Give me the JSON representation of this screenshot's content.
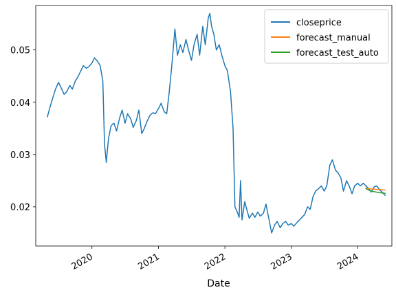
{
  "chart_data": {
    "type": "line",
    "title": "",
    "xlabel": "Date",
    "ylabel": "",
    "x_tick_labels": [
      "2020",
      "2021",
      "2022",
      "2023",
      "2024"
    ],
    "y_tick_labels": [
      "0.02",
      "0.03",
      "0.04",
      "0.05"
    ],
    "y_ticks": [
      0.02,
      0.03,
      0.04,
      0.05
    ],
    "xlim": [
      "2019-02-26",
      "2024-07-07"
    ],
    "ylim": [
      0.0125,
      0.0585
    ],
    "grid": false,
    "legend_position": "top-right",
    "series": [
      {
        "name": "closeprice",
        "color": "#1f77b4",
        "points": [
          [
            "2019-05-01",
            0.0372
          ],
          [
            "2019-05-15",
            0.039
          ],
          [
            "2019-06-01",
            0.041
          ],
          [
            "2019-06-15",
            0.0425
          ],
          [
            "2019-07-01",
            0.0438
          ],
          [
            "2019-07-15",
            0.0428
          ],
          [
            "2019-08-01",
            0.0415
          ],
          [
            "2019-08-15",
            0.042
          ],
          [
            "2019-09-01",
            0.0432
          ],
          [
            "2019-09-15",
            0.0425
          ],
          [
            "2019-10-01",
            0.044
          ],
          [
            "2019-10-15",
            0.0448
          ],
          [
            "2019-11-01",
            0.046
          ],
          [
            "2019-11-15",
            0.047
          ],
          [
            "2019-12-01",
            0.0465
          ],
          [
            "2019-12-15",
            0.0468
          ],
          [
            "2020-01-01",
            0.0475
          ],
          [
            "2020-01-15",
            0.0485
          ],
          [
            "2020-02-01",
            0.0478
          ],
          [
            "2020-02-15",
            0.047
          ],
          [
            "2020-03-01",
            0.044
          ],
          [
            "2020-03-10",
            0.032
          ],
          [
            "2020-03-20",
            0.0285
          ],
          [
            "2020-04-01",
            0.033
          ],
          [
            "2020-04-15",
            0.0355
          ],
          [
            "2020-05-01",
            0.036
          ],
          [
            "2020-05-15",
            0.0345
          ],
          [
            "2020-06-01",
            0.037
          ],
          [
            "2020-06-15",
            0.0385
          ],
          [
            "2020-07-01",
            0.036
          ],
          [
            "2020-07-15",
            0.0378
          ],
          [
            "2020-08-01",
            0.0368
          ],
          [
            "2020-08-15",
            0.0352
          ],
          [
            "2020-09-01",
            0.0365
          ],
          [
            "2020-09-15",
            0.0385
          ],
          [
            "2020-10-01",
            0.034
          ],
          [
            "2020-10-15",
            0.035
          ],
          [
            "2020-11-01",
            0.0365
          ],
          [
            "2020-11-15",
            0.0375
          ],
          [
            "2020-12-01",
            0.038
          ],
          [
            "2020-12-15",
            0.0378
          ],
          [
            "2021-01-01",
            0.0388
          ],
          [
            "2021-01-15",
            0.0398
          ],
          [
            "2021-02-01",
            0.0382
          ],
          [
            "2021-02-15",
            0.0378
          ],
          [
            "2021-03-01",
            0.042
          ],
          [
            "2021-03-15",
            0.047
          ],
          [
            "2021-04-01",
            0.054
          ],
          [
            "2021-04-15",
            0.049
          ],
          [
            "2021-05-01",
            0.051
          ],
          [
            "2021-05-15",
            0.0495
          ],
          [
            "2021-06-01",
            0.052
          ],
          [
            "2021-06-15",
            0.05
          ],
          [
            "2021-07-01",
            0.048
          ],
          [
            "2021-07-15",
            0.051
          ],
          [
            "2021-08-01",
            0.053
          ],
          [
            "2021-08-15",
            0.049
          ],
          [
            "2021-09-01",
            0.0545
          ],
          [
            "2021-09-15",
            0.051
          ],
          [
            "2021-10-01",
            0.056
          ],
          [
            "2021-10-10",
            0.057
          ],
          [
            "2021-10-20",
            0.0545
          ],
          [
            "2021-11-01",
            0.053
          ],
          [
            "2021-11-15",
            0.05
          ],
          [
            "2021-12-01",
            0.051
          ],
          [
            "2021-12-15",
            0.049
          ],
          [
            "2022-01-01",
            0.047
          ],
          [
            "2022-01-15",
            0.046
          ],
          [
            "2022-02-01",
            0.042
          ],
          [
            "2022-02-15",
            0.035
          ],
          [
            "2022-02-25",
            0.02
          ],
          [
            "2022-03-10",
            0.019
          ],
          [
            "2022-03-20",
            0.018
          ],
          [
            "2022-03-28",
            0.025
          ],
          [
            "2022-04-05",
            0.0175
          ],
          [
            "2022-04-20",
            0.021
          ],
          [
            "2022-05-01",
            0.0195
          ],
          [
            "2022-05-15",
            0.0178
          ],
          [
            "2022-06-01",
            0.0188
          ],
          [
            "2022-06-15",
            0.018
          ],
          [
            "2022-07-01",
            0.019
          ],
          [
            "2022-07-15",
            0.0182
          ],
          [
            "2022-08-01",
            0.0188
          ],
          [
            "2022-08-15",
            0.0205
          ],
          [
            "2022-09-01",
            0.0175
          ],
          [
            "2022-09-15",
            0.015
          ],
          [
            "2022-10-01",
            0.0165
          ],
          [
            "2022-10-15",
            0.0172
          ],
          [
            "2022-11-01",
            0.016
          ],
          [
            "2022-11-15",
            0.0168
          ],
          [
            "2022-12-01",
            0.0172
          ],
          [
            "2022-12-15",
            0.0165
          ],
          [
            "2023-01-01",
            0.0168
          ],
          [
            "2023-01-15",
            0.0163
          ],
          [
            "2023-02-01",
            0.017
          ],
          [
            "2023-02-15",
            0.0175
          ],
          [
            "2023-03-01",
            0.018
          ],
          [
            "2023-03-15",
            0.0185
          ],
          [
            "2023-04-01",
            0.02
          ],
          [
            "2023-04-15",
            0.0195
          ],
          [
            "2023-05-01",
            0.022
          ],
          [
            "2023-05-15",
            0.023
          ],
          [
            "2023-06-01",
            0.0235
          ],
          [
            "2023-06-15",
            0.024
          ],
          [
            "2023-07-01",
            0.023
          ],
          [
            "2023-07-15",
            0.024
          ],
          [
            "2023-08-01",
            0.028
          ],
          [
            "2023-08-15",
            0.029
          ],
          [
            "2023-09-01",
            0.027
          ],
          [
            "2023-09-15",
            0.0265
          ],
          [
            "2023-10-01",
            0.0255
          ],
          [
            "2023-10-15",
            0.023
          ],
          [
            "2023-11-01",
            0.025
          ],
          [
            "2023-11-15",
            0.024
          ],
          [
            "2023-12-01",
            0.0225
          ],
          [
            "2023-12-15",
            0.024
          ],
          [
            "2024-01-01",
            0.0245
          ],
          [
            "2024-01-15",
            0.024
          ],
          [
            "2024-02-01",
            0.0245
          ],
          [
            "2024-02-15",
            0.024
          ],
          [
            "2024-03-01",
            0.0235
          ],
          [
            "2024-03-15",
            0.0228
          ],
          [
            "2024-04-01",
            0.0238
          ],
          [
            "2024-04-15",
            0.024
          ],
          [
            "2024-05-01",
            0.0232
          ],
          [
            "2024-05-15",
            0.0228
          ],
          [
            "2024-05-31",
            0.0222
          ]
        ]
      },
      {
        "name": "forecast_manual",
        "color": "#ff7f0e",
        "points": [
          [
            "2024-02-15",
            0.0236
          ],
          [
            "2024-03-01",
            0.0235
          ],
          [
            "2024-03-15",
            0.0234
          ],
          [
            "2024-04-01",
            0.0234
          ],
          [
            "2024-04-15",
            0.0233
          ],
          [
            "2024-05-01",
            0.0233
          ],
          [
            "2024-05-31",
            0.0232
          ]
        ]
      },
      {
        "name": "forecast_test_auto",
        "color": "#2ca02c",
        "points": [
          [
            "2024-02-15",
            0.0235
          ],
          [
            "2024-03-01",
            0.0232
          ],
          [
            "2024-03-15",
            0.023
          ],
          [
            "2024-04-01",
            0.0229
          ],
          [
            "2024-04-15",
            0.0228
          ],
          [
            "2024-05-01",
            0.0227
          ],
          [
            "2024-05-31",
            0.0226
          ]
        ]
      }
    ]
  }
}
